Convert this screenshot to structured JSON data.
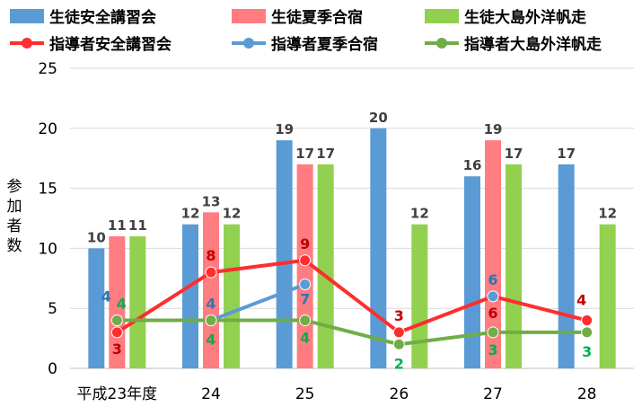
{
  "chart_data": {
    "type": "bar",
    "categories": [
      "平成23年度",
      "24",
      "25",
      "26",
      "27",
      "28"
    ],
    "ylabel": "参加者数",
    "ylim": [
      0,
      25
    ],
    "yticks": [
      0,
      5,
      10,
      15,
      20,
      25
    ],
    "grid": true,
    "legend_position": "top",
    "bar_series": [
      {
        "name": "生徒安全講習会",
        "color": "#5B9BD5",
        "values": [
          10,
          12,
          19,
          20,
          16,
          17
        ]
      },
      {
        "name": "生徒夏季合宿",
        "color": "#FF7C80",
        "values": [
          11,
          13,
          17,
          null,
          19,
          null
        ]
      },
      {
        "name": "生徒大島外洋帆走",
        "color": "#92D050",
        "values": [
          11,
          12,
          17,
          12,
          17,
          12
        ]
      }
    ],
    "line_series": [
      {
        "name": "指導者安全講習会",
        "color": "#FF2D2D",
        "label_color": "#C00000",
        "values": [
          3,
          8,
          9,
          3,
          6,
          4
        ]
      },
      {
        "name": "指導者夏季合宿",
        "color": "#5B9BD5",
        "label_color": "#2E75B6",
        "values": [
          4,
          4,
          7,
          null,
          6,
          null
        ]
      },
      {
        "name": "指導者大島外洋帆走",
        "color": "#70AD47",
        "label_color": "#00B050",
        "values": [
          4,
          4,
          4,
          2,
          3,
          3
        ]
      }
    ]
  }
}
